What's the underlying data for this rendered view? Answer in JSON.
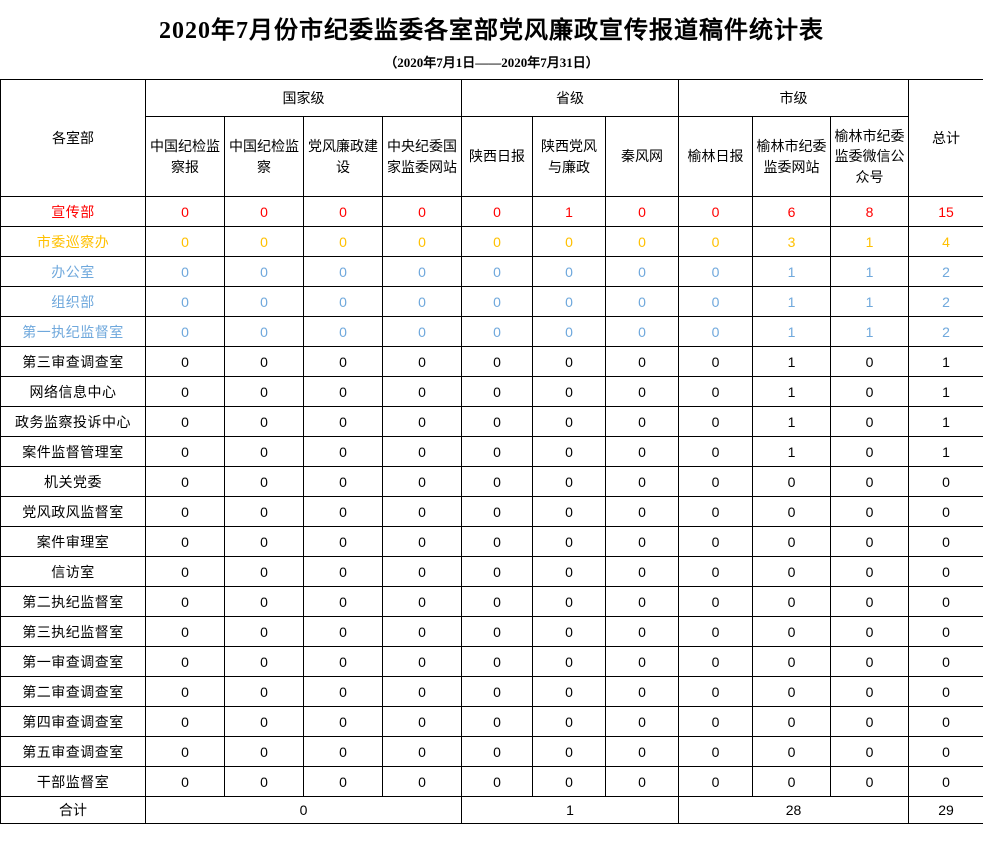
{
  "title": "2020年7月份市纪委监委各室部党风廉政宣传报道稿件统计表",
  "subtitle": "（2020年7月1日——2020年7月31日）",
  "colors": {
    "highlight_red": "#FF0000",
    "highlight_orange": "#FFC000",
    "highlight_blue": "#6FA8DC",
    "default_black": "#000000"
  },
  "table": {
    "corner_header": "各室部",
    "total_header": "总计",
    "groups": [
      {
        "label": "国家级",
        "columns": [
          "中国纪检监察报",
          "中国纪检监察",
          "党风廉政建设",
          "中央纪委国家监委网站"
        ]
      },
      {
        "label": "省级",
        "columns": [
          "陕西日报",
          "陕西党风与廉政",
          "秦风网"
        ]
      },
      {
        "label": "市级",
        "columns": [
          "榆林日报",
          "榆林市纪委监委网站",
          "榆林市纪委监委微信公众号"
        ]
      }
    ],
    "rows": [
      {
        "label": "宣传部",
        "color": "#FF0000",
        "values": [
          0,
          0,
          0,
          0,
          0,
          1,
          0,
          0,
          6,
          8
        ],
        "total": 15
      },
      {
        "label": "市委巡察办",
        "color": "#FFC000",
        "values": [
          0,
          0,
          0,
          0,
          0,
          0,
          0,
          0,
          3,
          1
        ],
        "total": 4
      },
      {
        "label": "办公室",
        "color": "#6FA8DC",
        "values": [
          0,
          0,
          0,
          0,
          0,
          0,
          0,
          0,
          1,
          1
        ],
        "total": 2
      },
      {
        "label": "组织部",
        "color": "#6FA8DC",
        "values": [
          0,
          0,
          0,
          0,
          0,
          0,
          0,
          0,
          1,
          1
        ],
        "total": 2
      },
      {
        "label": "第一执纪监督室",
        "color": "#6FA8DC",
        "values": [
          0,
          0,
          0,
          0,
          0,
          0,
          0,
          0,
          1,
          1
        ],
        "total": 2
      },
      {
        "label": "第三审查调查室",
        "color": "#000000",
        "values": [
          0,
          0,
          0,
          0,
          0,
          0,
          0,
          0,
          1,
          0
        ],
        "total": 1
      },
      {
        "label": "网络信息中心",
        "color": "#000000",
        "values": [
          0,
          0,
          0,
          0,
          0,
          0,
          0,
          0,
          1,
          0
        ],
        "total": 1
      },
      {
        "label": "政务监察投诉中心",
        "color": "#000000",
        "values": [
          0,
          0,
          0,
          0,
          0,
          0,
          0,
          0,
          1,
          0
        ],
        "total": 1
      },
      {
        "label": "案件监督管理室",
        "color": "#000000",
        "values": [
          0,
          0,
          0,
          0,
          0,
          0,
          0,
          0,
          1,
          0
        ],
        "total": 1
      },
      {
        "label": "机关党委",
        "color": "#000000",
        "values": [
          0,
          0,
          0,
          0,
          0,
          0,
          0,
          0,
          0,
          0
        ],
        "total": 0
      },
      {
        "label": "党风政风监督室",
        "color": "#000000",
        "values": [
          0,
          0,
          0,
          0,
          0,
          0,
          0,
          0,
          0,
          0
        ],
        "total": 0
      },
      {
        "label": "案件审理室",
        "color": "#000000",
        "values": [
          0,
          0,
          0,
          0,
          0,
          0,
          0,
          0,
          0,
          0
        ],
        "total": 0
      },
      {
        "label": "信访室",
        "color": "#000000",
        "values": [
          0,
          0,
          0,
          0,
          0,
          0,
          0,
          0,
          0,
          0
        ],
        "total": 0
      },
      {
        "label": "第二执纪监督室",
        "color": "#000000",
        "values": [
          0,
          0,
          0,
          0,
          0,
          0,
          0,
          0,
          0,
          0
        ],
        "total": 0
      },
      {
        "label": "第三执纪监督室",
        "color": "#000000",
        "values": [
          0,
          0,
          0,
          0,
          0,
          0,
          0,
          0,
          0,
          0
        ],
        "total": 0
      },
      {
        "label": "第一审查调查室",
        "color": "#000000",
        "values": [
          0,
          0,
          0,
          0,
          0,
          0,
          0,
          0,
          0,
          0
        ],
        "total": 0
      },
      {
        "label": "第二审查调查室",
        "color": "#000000",
        "values": [
          0,
          0,
          0,
          0,
          0,
          0,
          0,
          0,
          0,
          0
        ],
        "total": 0
      },
      {
        "label": "第四审查调查室",
        "color": "#000000",
        "values": [
          0,
          0,
          0,
          0,
          0,
          0,
          0,
          0,
          0,
          0
        ],
        "total": 0
      },
      {
        "label": "第五审查调查室",
        "color": "#000000",
        "values": [
          0,
          0,
          0,
          0,
          0,
          0,
          0,
          0,
          0,
          0
        ],
        "total": 0
      },
      {
        "label": "干部监督室",
        "color": "#000000",
        "values": [
          0,
          0,
          0,
          0,
          0,
          0,
          0,
          0,
          0,
          0
        ],
        "total": 0
      }
    ],
    "summary": {
      "label": "合计",
      "group_totals": [
        0,
        1,
        28
      ],
      "grand_total": 29
    }
  }
}
